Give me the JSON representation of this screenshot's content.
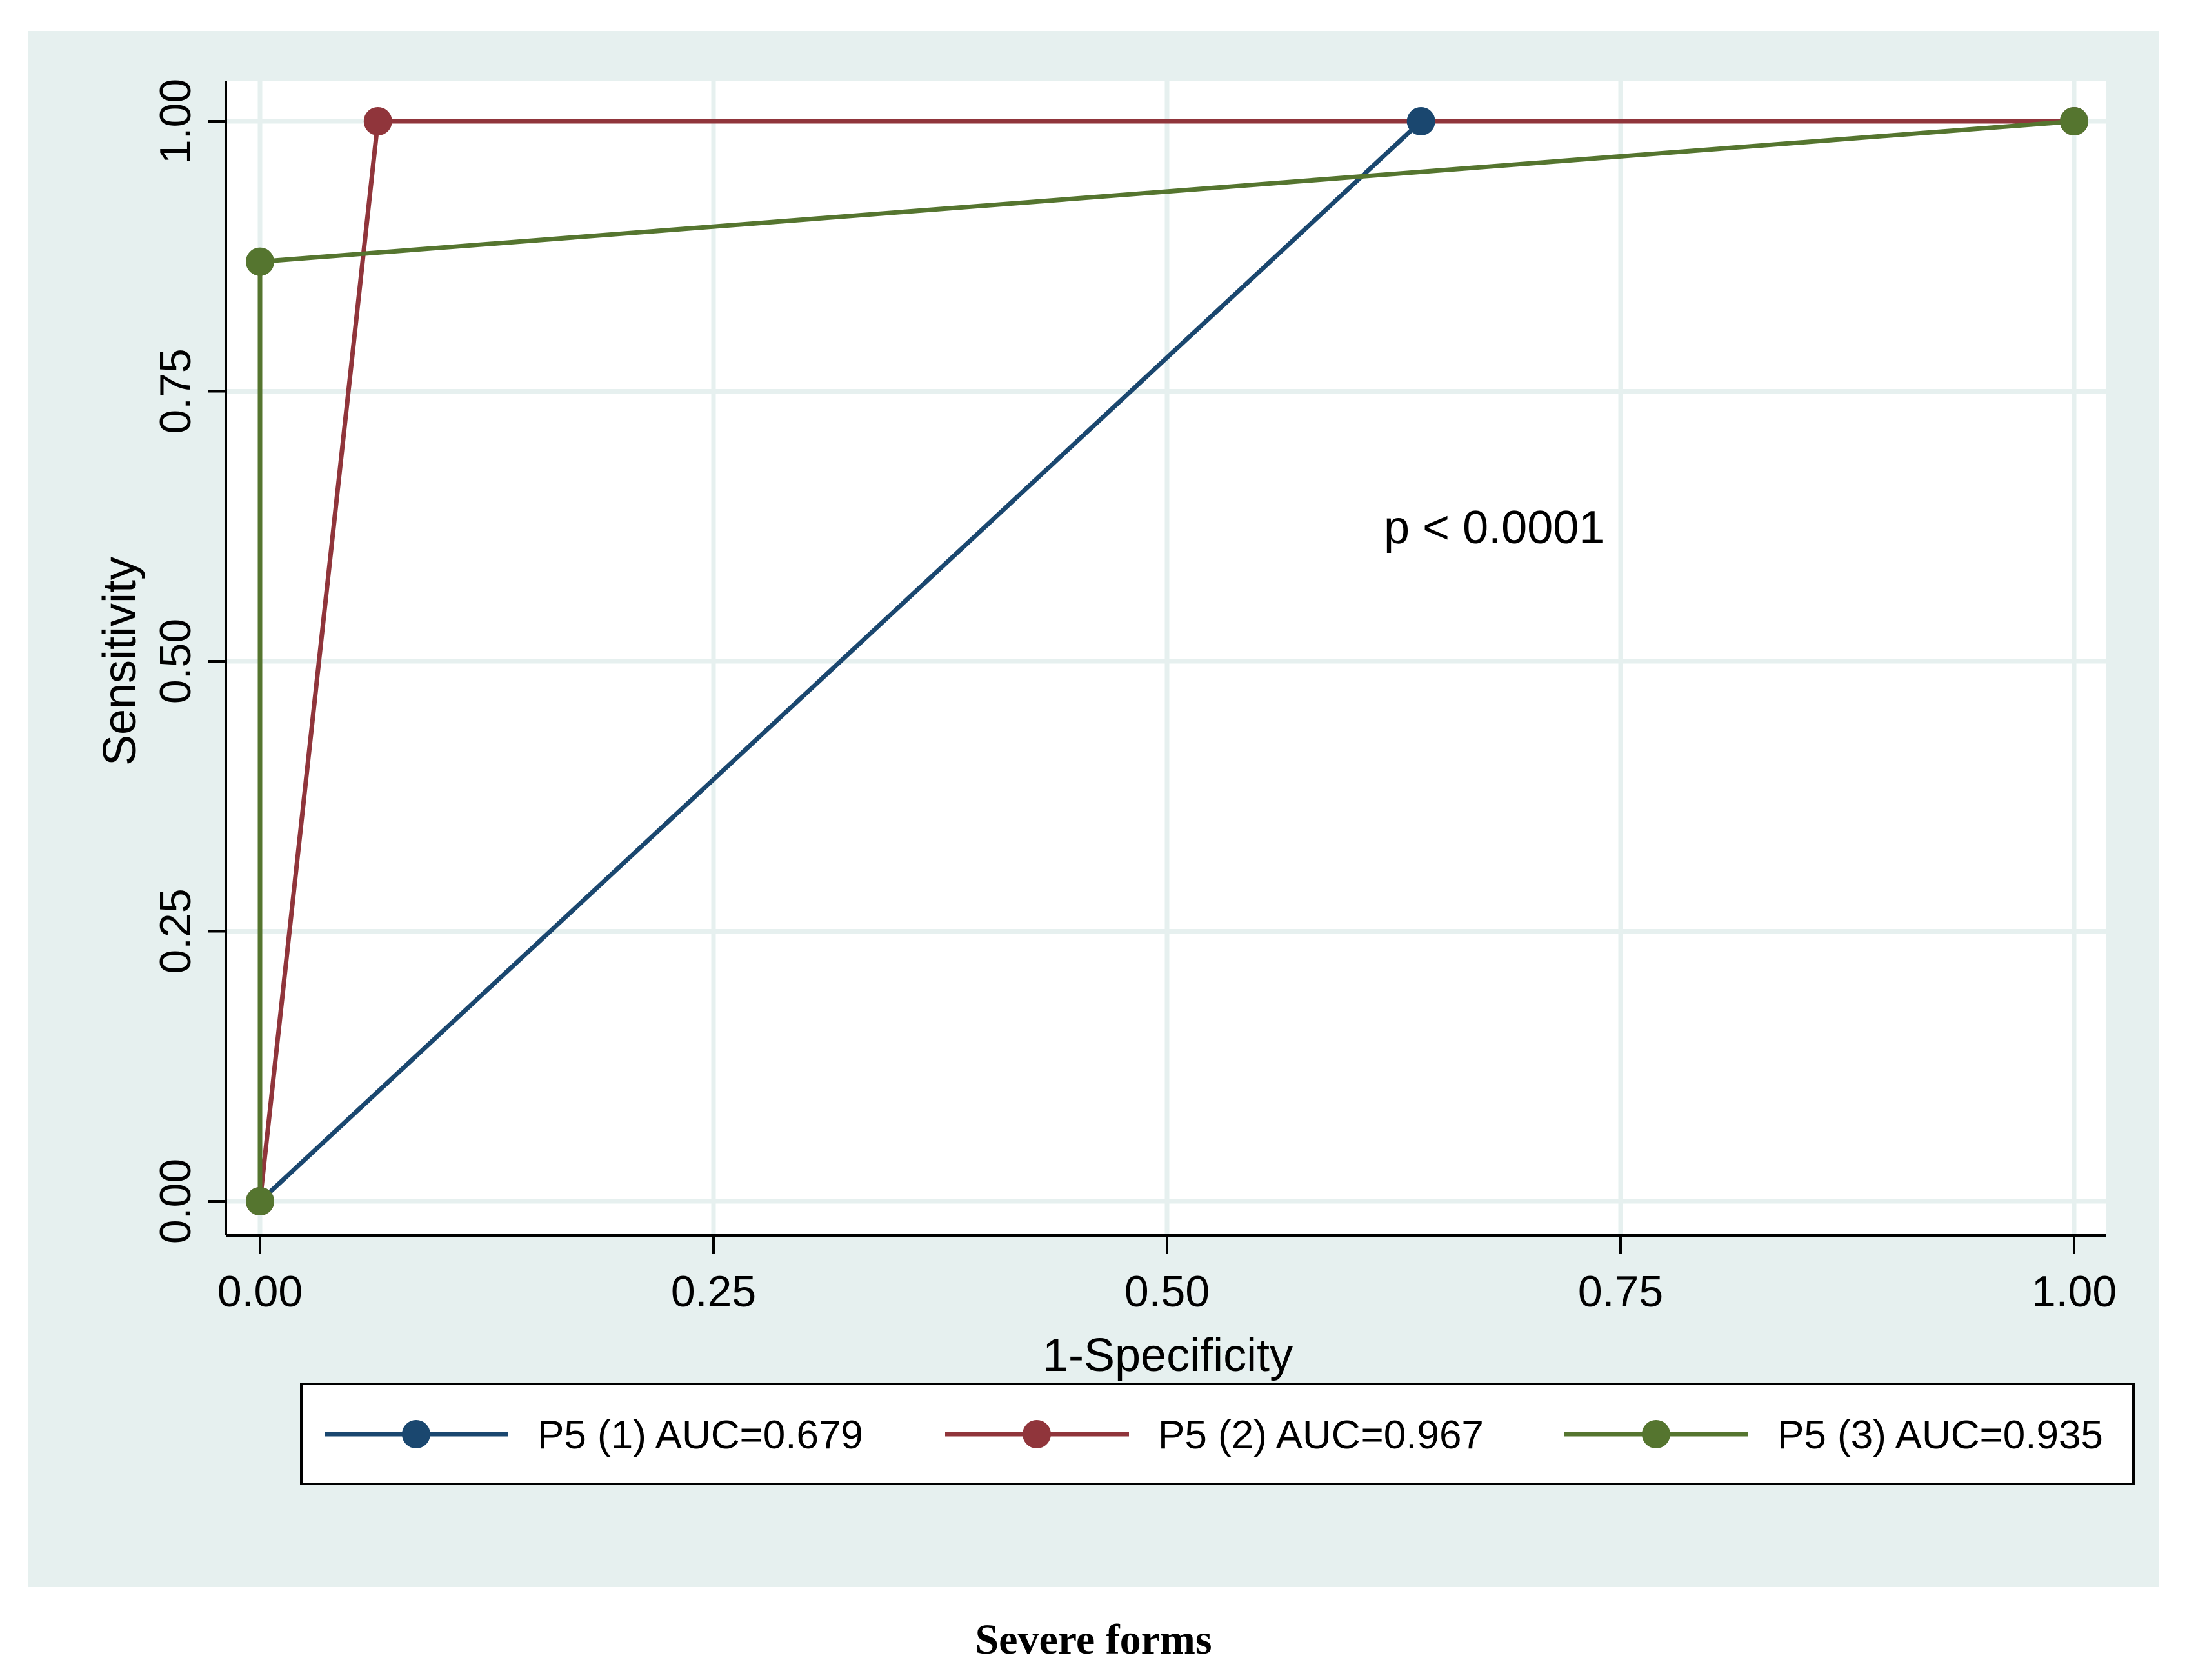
{
  "chart_data": {
    "type": "line",
    "xlabel": "1-Specificity",
    "ylabel": "Sensitivity",
    "xlim": [
      0,
      1
    ],
    "ylim": [
      0,
      1
    ],
    "x_ticks": [
      "0.00",
      "0.25",
      "0.50",
      "0.75",
      "1.00"
    ],
    "y_ticks": [
      "0.00",
      "0.25",
      "0.50",
      "0.75",
      "1.00"
    ],
    "grid": true,
    "legend_position": "bottom",
    "annotation": "p < 0.0001",
    "caption": "Severe forms",
    "series": [
      {
        "name": "P5 (1) AUC=0.679",
        "color": "#1a476f",
        "points": [
          [
            0,
            0
          ],
          [
            0.64,
            1
          ],
          [
            1,
            1
          ]
        ],
        "markers": [
          [
            0,
            0
          ],
          [
            0.64,
            1
          ],
          [
            1,
            1
          ]
        ]
      },
      {
        "name": "P5 (2) AUC=0.967",
        "color": "#90353b",
        "points": [
          [
            0,
            0
          ],
          [
            0.065,
            1
          ],
          [
            1,
            1
          ]
        ],
        "markers": [
          [
            0,
            0
          ],
          [
            0.065,
            1
          ],
          [
            1,
            1
          ]
        ]
      },
      {
        "name": "P5 (3) AUC=0.935",
        "color": "#55752f",
        "points": [
          [
            0,
            0
          ],
          [
            0,
            0.87
          ],
          [
            1,
            1
          ]
        ],
        "markers": [
          [
            0,
            0
          ],
          [
            0,
            0.87
          ],
          [
            1,
            1
          ]
        ]
      }
    ],
    "colors": {
      "outer_background": "#e6f0ef",
      "plot_background": "#ffffff",
      "grid": "#e6f0ef"
    }
  }
}
